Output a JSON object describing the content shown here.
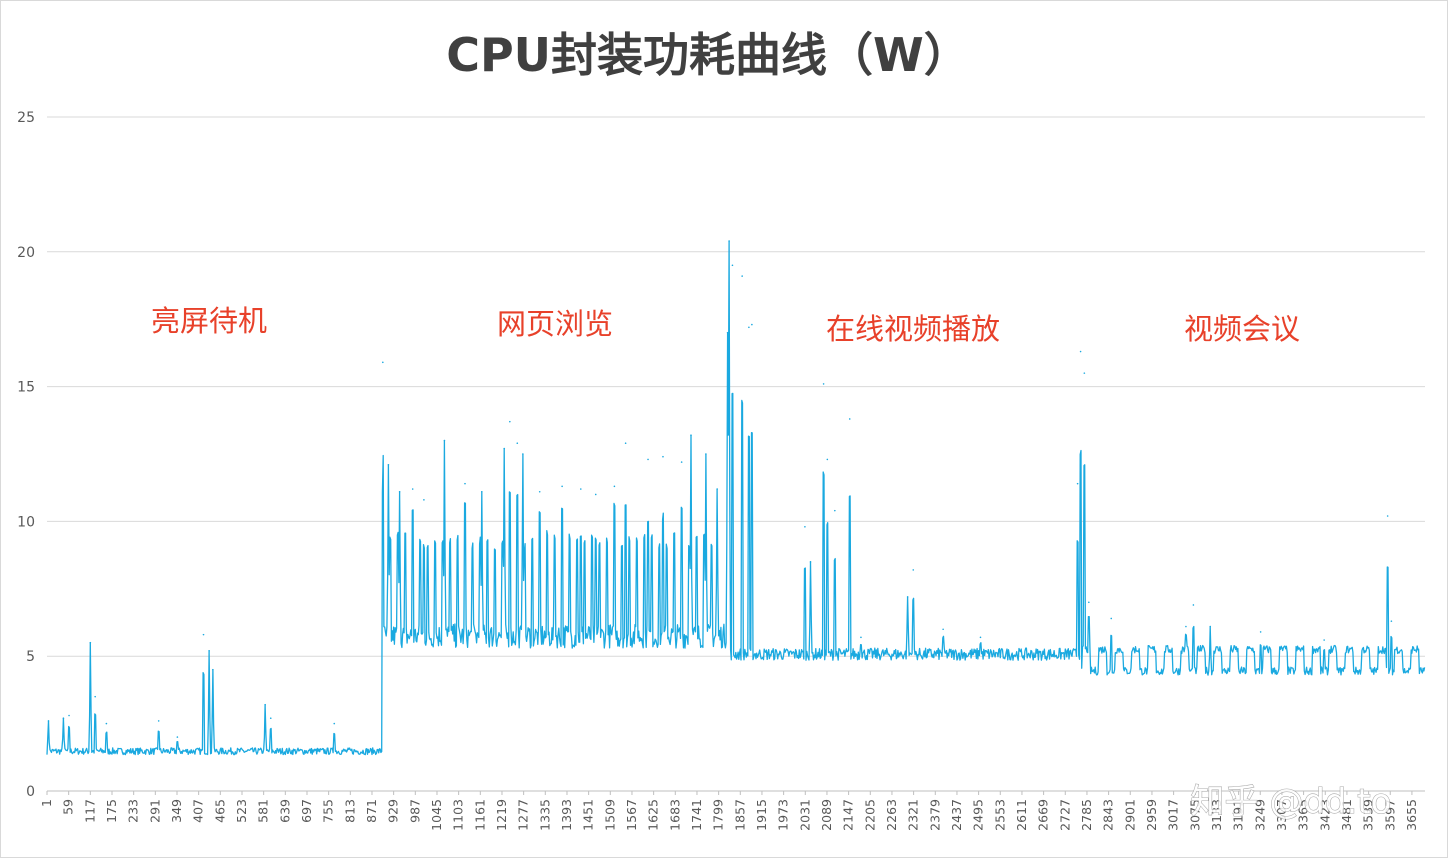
{
  "chart_data": {
    "type": "line",
    "title": "CPU封装功耗曲线（W）",
    "xlabel": "",
    "ylabel": "",
    "ylim": [
      0,
      25
    ],
    "yticks": [
      0,
      5,
      10,
      15,
      20,
      25
    ],
    "xlim": [
      1,
      3690
    ],
    "xticks": [
      1,
      59,
      117,
      175,
      233,
      291,
      349,
      407,
      465,
      523,
      581,
      639,
      697,
      755,
      813,
      871,
      929,
      987,
      1045,
      1103,
      1161,
      1219,
      1277,
      1335,
      1393,
      1451,
      1509,
      1567,
      1625,
      1683,
      1741,
      1799,
      1857,
      1915,
      1973,
      2031,
      2089,
      2147,
      2205,
      2263,
      2321,
      2379,
      2437,
      2495,
      2553,
      2611,
      2669,
      2727,
      2785,
      2843,
      2901,
      2959,
      3017,
      3075,
      3133,
      3191,
      3249,
      3307,
      3365,
      3423,
      3481,
      3539,
      3597,
      3655
    ],
    "grid": true,
    "legend": "none",
    "series_color": "#1aa9e0",
    "phases": [
      {
        "label": "亮屏待机",
        "x_from": 1,
        "x_to": 900,
        "baseline": 1.4
      },
      {
        "label": "网页浏览",
        "x_from": 900,
        "x_to": 1830,
        "baseline": 5.5
      },
      {
        "label": "在线视频播放",
        "x_from": 1830,
        "x_to": 2770,
        "baseline": 5.0
      },
      {
        "label": "视频会议",
        "x_from": 2770,
        "x_to": 3690,
        "baseline": 4.8
      }
    ],
    "peaks": [
      {
        "x": 5,
        "y": 2.6
      },
      {
        "x": 45,
        "y": 2.7
      },
      {
        "x": 60,
        "y": 2.8
      },
      {
        "x": 117,
        "y": 5.5
      },
      {
        "x": 130,
        "y": 3.5
      },
      {
        "x": 160,
        "y": 2.5
      },
      {
        "x": 300,
        "y": 2.6
      },
      {
        "x": 350,
        "y": 2.0
      },
      {
        "x": 420,
        "y": 5.8
      },
      {
        "x": 435,
        "y": 5.2
      },
      {
        "x": 445,
        "y": 4.5
      },
      {
        "x": 585,
        "y": 3.2
      },
      {
        "x": 600,
        "y": 2.7
      },
      {
        "x": 770,
        "y": 2.5
      },
      {
        "x": 900,
        "y": 15.9
      },
      {
        "x": 915,
        "y": 12.1
      },
      {
        "x": 945,
        "y": 11.1
      },
      {
        "x": 980,
        "y": 11.2
      },
      {
        "x": 1010,
        "y": 10.8
      },
      {
        "x": 1065,
        "y": 13.0
      },
      {
        "x": 1120,
        "y": 11.4
      },
      {
        "x": 1165,
        "y": 11.1
      },
      {
        "x": 1225,
        "y": 12.7
      },
      {
        "x": 1240,
        "y": 13.7
      },
      {
        "x": 1260,
        "y": 12.9
      },
      {
        "x": 1275,
        "y": 12.5
      },
      {
        "x": 1320,
        "y": 11.1
      },
      {
        "x": 1380,
        "y": 11.3
      },
      {
        "x": 1430,
        "y": 11.2
      },
      {
        "x": 1470,
        "y": 11.0
      },
      {
        "x": 1520,
        "y": 11.3
      },
      {
        "x": 1550,
        "y": 12.9
      },
      {
        "x": 1610,
        "y": 12.3
      },
      {
        "x": 1650,
        "y": 12.4
      },
      {
        "x": 1700,
        "y": 12.2
      },
      {
        "x": 1725,
        "y": 13.2
      },
      {
        "x": 1765,
        "y": 12.5
      },
      {
        "x": 1795,
        "y": 11.2
      },
      {
        "x": 1823,
        "y": 17.0
      },
      {
        "x": 1827,
        "y": 20.4
      },
      {
        "x": 1836,
        "y": 19.5
      },
      {
        "x": 1862,
        "y": 19.1
      },
      {
        "x": 1880,
        "y": 17.2
      },
      {
        "x": 1888,
        "y": 17.3
      },
      {
        "x": 2030,
        "y": 9.8
      },
      {
        "x": 2045,
        "y": 8.5
      },
      {
        "x": 2080,
        "y": 15.1
      },
      {
        "x": 2090,
        "y": 12.3
      },
      {
        "x": 2110,
        "y": 10.4
      },
      {
        "x": 2150,
        "y": 13.8
      },
      {
        "x": 2180,
        "y": 5.7
      },
      {
        "x": 2305,
        "y": 7.2
      },
      {
        "x": 2320,
        "y": 8.2
      },
      {
        "x": 2400,
        "y": 6.0
      },
      {
        "x": 2500,
        "y": 5.7
      },
      {
        "x": 2760,
        "y": 11.4
      },
      {
        "x": 2768,
        "y": 16.3
      },
      {
        "x": 2778,
        "y": 15.5
      },
      {
        "x": 2790,
        "y": 7.0
      },
      {
        "x": 2850,
        "y": 6.4
      },
      {
        "x": 3050,
        "y": 6.1
      },
      {
        "x": 3070,
        "y": 6.9
      },
      {
        "x": 3115,
        "y": 6.1
      },
      {
        "x": 3250,
        "y": 5.9
      },
      {
        "x": 3420,
        "y": 5.6
      },
      {
        "x": 3590,
        "y": 10.2
      },
      {
        "x": 3600,
        "y": 6.3
      }
    ]
  },
  "watermark": "知乎 @dd.to"
}
